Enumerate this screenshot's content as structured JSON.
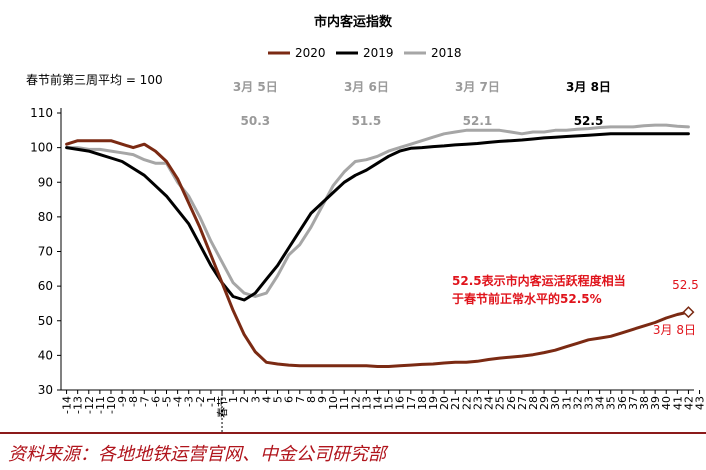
{
  "chart_data": {
    "type": "line",
    "title": "市内客运指数",
    "ylabel": "春节前第三周平均 = 100",
    "ylim": [
      30,
      110
    ],
    "yticks": [
      30,
      40,
      50,
      60,
      70,
      80,
      90,
      100,
      110
    ],
    "x": [
      -14,
      -13,
      -12,
      -11,
      -10,
      -9,
      -8,
      -7,
      -6,
      -5,
      -4,
      -3,
      -2,
      -1,
      1,
      2,
      3,
      4,
      5,
      6,
      7,
      8,
      9,
      10,
      11,
      12,
      13,
      14,
      15,
      16,
      17,
      18,
      19,
      20,
      21,
      22,
      23,
      24,
      25,
      26,
      27,
      28,
      29,
      30,
      31,
      32,
      33,
      34,
      35,
      36,
      37,
      38,
      39,
      40,
      41,
      42,
      43
    ],
    "x_tick_labels": [
      "-14",
      "-13",
      "-12",
      "-11",
      "-10",
      "-9",
      "-8",
      "-7",
      "-6",
      "-5",
      "-4",
      "-3",
      "-2",
      "-1",
      "春节",
      "1",
      "2",
      "3",
      "4",
      "5",
      "6",
      "7",
      "8",
      "9",
      "10",
      "11",
      "12",
      "13",
      "14",
      "15",
      "16",
      "17",
      "18",
      "19",
      "20",
      "21",
      "22",
      "23",
      "24",
      "25",
      "26",
      "27",
      "28",
      "29",
      "30",
      "31",
      "32",
      "33",
      "34",
      "35",
      "36",
      "37",
      "38",
      "39",
      "40",
      "41",
      "42",
      "43"
    ],
    "legend_position": "top",
    "grid": false,
    "series": [
      {
        "name": "2020",
        "color": "#7b2a13",
        "values": [
          101,
          102,
          102,
          102,
          102,
          101,
          100,
          101,
          99,
          96,
          91,
          84,
          77,
          69,
          61,
          53,
          46,
          41,
          38,
          37.5,
          37.2,
          37,
          37,
          37,
          37,
          37,
          37,
          37,
          36.8,
          36.8,
          37,
          37.2,
          37.4,
          37.5,
          37.8,
          38,
          38,
          38.3,
          38.8,
          39.2,
          39.5,
          39.8,
          40.2,
          40.8,
          41.5,
          42.5,
          43.5,
          44.5,
          45,
          45.5,
          46.5,
          47.5,
          48.5,
          49.5,
          50.8,
          51.8,
          52.5
        ]
      },
      {
        "name": "2019",
        "color": "#000000",
        "values": [
          100,
          99.5,
          99,
          98,
          97,
          96,
          94,
          92,
          89,
          86,
          82,
          78,
          72,
          66,
          61,
          57,
          56,
          58,
          62,
          66,
          71,
          76,
          81,
          84,
          87,
          90,
          92,
          93.5,
          95.5,
          97.5,
          99,
          99.8,
          100,
          100.3,
          100.5,
          100.8,
          101,
          101.2,
          101.5,
          101.8,
          102,
          102.2,
          102.5,
          102.8,
          103,
          103.2,
          103.4,
          103.6,
          103.8,
          104,
          104,
          104,
          104,
          104,
          104,
          104,
          104
        ]
      },
      {
        "name": "2018",
        "color": "#a6a6a6",
        "values": [
          100,
          100,
          99.5,
          99.5,
          99,
          98.5,
          98,
          96.5,
          95.5,
          95.5,
          90,
          86,
          80,
          73,
          67,
          61,
          58,
          57,
          58,
          63,
          69,
          72,
          77,
          83,
          89,
          93,
          96,
          96.5,
          97.5,
          99,
          100,
          101,
          102,
          103,
          104,
          104.5,
          105,
          105,
          105,
          105,
          104.5,
          104,
          104.5,
          104.5,
          105,
          105,
          105.3,
          105.5,
          105.8,
          106,
          106,
          106,
          106.3,
          106.5,
          106.5,
          106.2,
          106
        ]
      }
    ],
    "date_annotations": [
      {
        "x": 4,
        "date": "3月 5日",
        "value": "50.3"
      },
      {
        "x": 14,
        "date": "3月 6日",
        "value": "51.5"
      },
      {
        "x": 24,
        "date": "3月 7日",
        "value": "52.1"
      },
      {
        "x": 34,
        "date": "3月 8日",
        "value": "52.5",
        "highlight": true
      }
    ],
    "note": "52.5表示市内客运活跃程度相当于春节前正常水平的52.5%",
    "end_point_label": {
      "value": "52.5",
      "date": "3月 8日"
    }
  },
  "source": "资料来源：各地地铁运营官网、中金公司研究部"
}
